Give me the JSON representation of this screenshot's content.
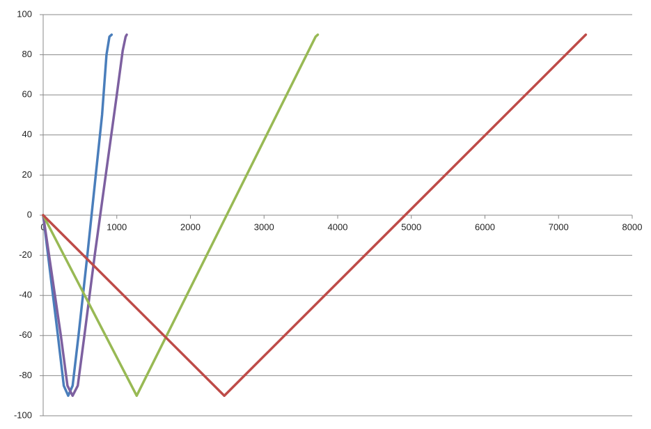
{
  "chart_data": {
    "type": "line",
    "xlim": [
      0,
      8000
    ],
    "xticks": [
      0,
      1000,
      2000,
      3000,
      4000,
      5000,
      6000,
      7000,
      8000
    ],
    "ylim": [
      -100,
      100
    ],
    "yticks": [
      -100,
      -80,
      -60,
      -40,
      -20,
      0,
      20,
      40,
      60,
      80,
      100
    ],
    "grid": true,
    "series": [
      {
        "color": "#4a7ebb",
        "x": [
          0,
          100,
          200,
          280,
          340,
          400,
          480,
          600,
          700,
          800,
          860,
          900,
          930
        ],
        "values": [
          0,
          -30,
          -60,
          -85,
          -90,
          -85,
          -60,
          -20,
          15,
          50,
          80,
          89,
          90
        ]
      },
      {
        "color": "#7d60a0",
        "x": [
          0,
          120,
          240,
          330,
          400,
          470,
          560,
          700,
          850,
          1000,
          1080,
          1120,
          1135
        ],
        "values": [
          0,
          -30,
          -60,
          -85,
          -90,
          -85,
          -60,
          -20,
          20,
          60,
          82,
          89,
          90
        ]
      },
      {
        "color": "#98b954",
        "x": [
          0,
          1270,
          3700,
          3730
        ],
        "values": [
          0,
          -90,
          89,
          90
        ]
      },
      {
        "color": "#be4b48",
        "x": [
          0,
          2460,
          7370
        ],
        "values": [
          0,
          -90,
          90
        ]
      }
    ]
  }
}
